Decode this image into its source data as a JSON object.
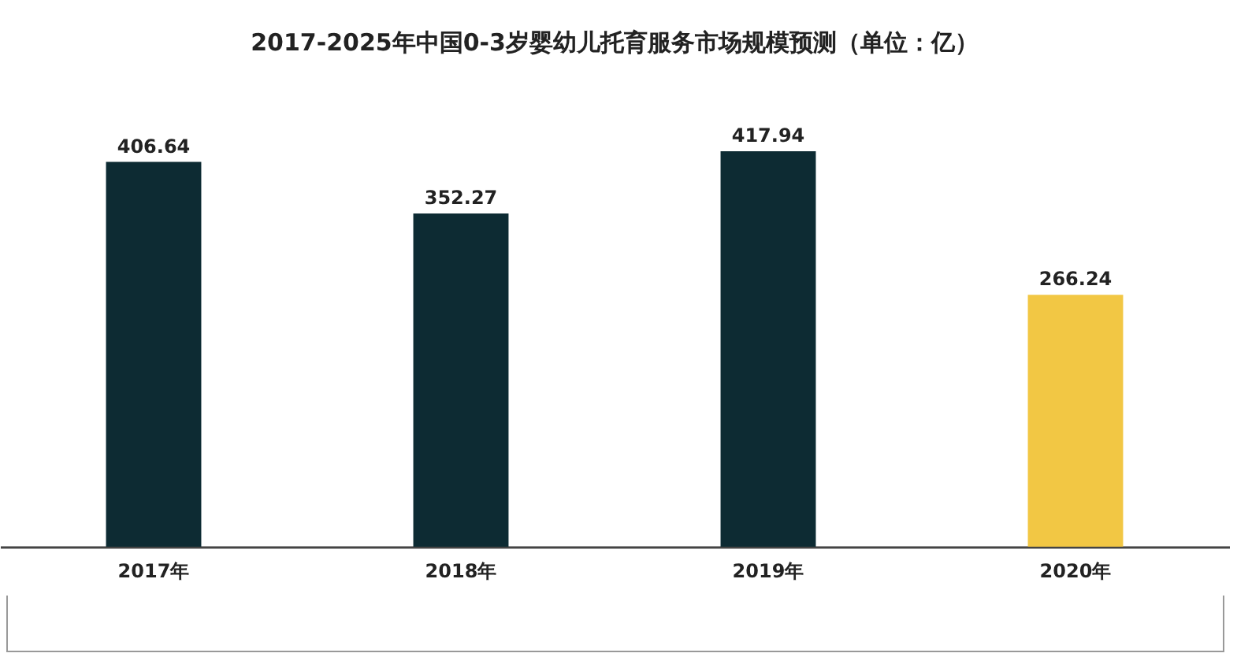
{
  "chart_data": {
    "type": "bar",
    "title": "2017-2025年中国0-3岁婴幼儿托育服务市场规模预测（单位：亿）",
    "categories": [
      "2017年",
      "2018年",
      "2019年",
      "2020年"
    ],
    "values": [
      406.64,
      352.27,
      417.94,
      266.24
    ],
    "colors": [
      "#0d2b33",
      "#0d2b33",
      "#0d2b33",
      "#f2c744"
    ],
    "data_labels": true
  }
}
